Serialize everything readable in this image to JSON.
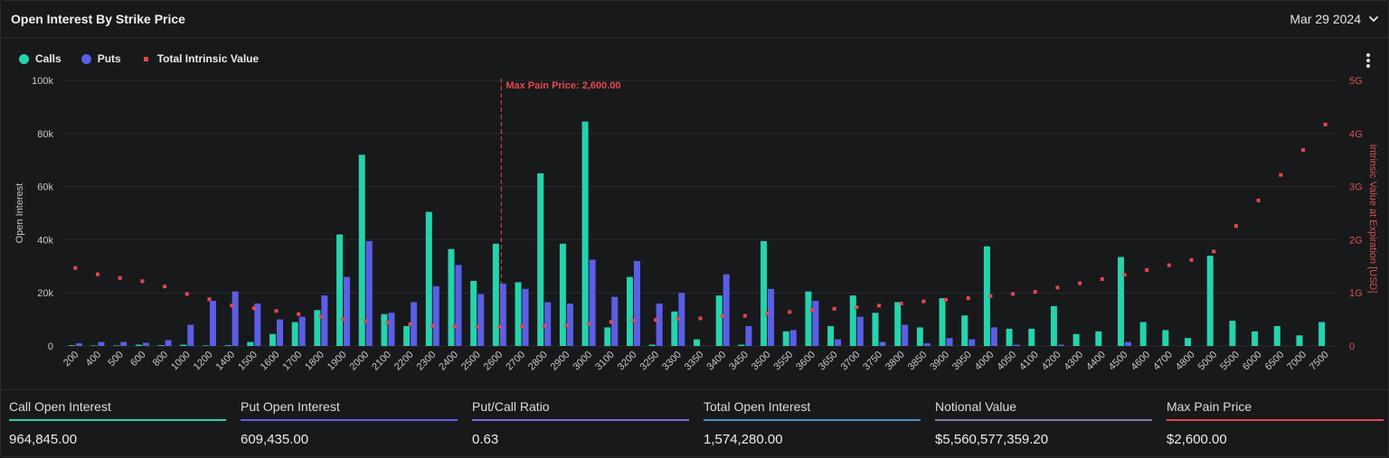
{
  "header": {
    "title": "Open Interest By Strike Price",
    "date": "Mar 29 2024"
  },
  "legend": {
    "calls": "Calls",
    "puts": "Puts",
    "intrinsic": "Total Intrinsic Value"
  },
  "colors": {
    "calls": "#25d3ad",
    "puts": "#5b5ee6",
    "intrinsic": "#e5484d",
    "grid": "#2a2b2f",
    "oi_line": "#4a8fc9"
  },
  "chart_data": {
    "type": "bar",
    "ylabel": "Open Interest",
    "y2label": "Intrinsic Value at Expiration [USD]",
    "ylim": [
      0,
      100000
    ],
    "y2lim": [
      0,
      5000000000
    ],
    "yticks": [
      "0",
      "20k",
      "40k",
      "60k",
      "80k",
      "100k"
    ],
    "y2ticks": [
      "0",
      "1G",
      "2G",
      "3G",
      "4G",
      "5G"
    ],
    "annotation": {
      "label": "Max Pain Price: 2,600.00",
      "category": "2600"
    },
    "categories": [
      "200",
      "400",
      "500",
      "600",
      "800",
      "1000",
      "1200",
      "1400",
      "1500",
      "1600",
      "1700",
      "1800",
      "1900",
      "2000",
      "2100",
      "2200",
      "2300",
      "2400",
      "2500",
      "2600",
      "2700",
      "2800",
      "2900",
      "3000",
      "3100",
      "3200",
      "3250",
      "3300",
      "3350",
      "3400",
      "3450",
      "3500",
      "3550",
      "3600",
      "3650",
      "3700",
      "3750",
      "3800",
      "3850",
      "3900",
      "3950",
      "4000",
      "4050",
      "4100",
      "4200",
      "4300",
      "4400",
      "4500",
      "4600",
      "4700",
      "4800",
      "5000",
      "5500",
      "6000",
      "6500",
      "7000",
      "7500"
    ],
    "series": [
      {
        "name": "Calls",
        "values": [
          300,
          200,
          200,
          500,
          300,
          500,
          200,
          300,
          1500,
          4500,
          9000,
          13500,
          42000,
          72000,
          12000,
          7500,
          50500,
          36500,
          24500,
          38500,
          24000,
          65000,
          38500,
          84500,
          7000,
          26000,
          500,
          13000,
          2500,
          19000,
          500,
          39500,
          5500,
          20500,
          7500,
          19000,
          12500,
          16500,
          7000,
          18000,
          11500,
          37500,
          6500,
          6500,
          15000,
          4500,
          5500,
          33500,
          9000,
          6000,
          3000,
          34000,
          9500,
          5500,
          7500,
          4000,
          9000
        ]
      },
      {
        "name": "Puts",
        "values": [
          1000,
          1500,
          1500,
          1200,
          2200,
          8000,
          17000,
          20500,
          16000,
          10000,
          11000,
          19000,
          26000,
          39500,
          12500,
          16500,
          22500,
          30500,
          19500,
          23500,
          21500,
          16500,
          16000,
          32500,
          18500,
          32000,
          16000,
          20000,
          100,
          27000,
          7500,
          21500,
          6000,
          17000,
          2500,
          11000,
          1500,
          8000,
          1000,
          3000,
          2500,
          7000,
          500,
          0,
          500,
          0,
          0,
          1500,
          0,
          0,
          0,
          0,
          0,
          0,
          0,
          0,
          0
        ]
      },
      {
        "name": "Total Intrinsic Value",
        "values": [
          1470000000,
          1350000000,
          1280000000,
          1220000000,
          1120000000,
          980000000,
          880000000,
          760000000,
          710000000,
          660000000,
          600000000,
          550000000,
          500000000,
          470000000,
          440000000,
          410000000,
          380000000,
          370000000,
          360000000,
          360000000,
          370000000,
          380000000,
          390000000,
          420000000,
          450000000,
          480000000,
          490000000,
          510000000,
          520000000,
          560000000,
          570000000,
          610000000,
          640000000,
          680000000,
          700000000,
          730000000,
          760000000,
          800000000,
          840000000,
          870000000,
          900000000,
          940000000,
          980000000,
          1020000000,
          1100000000,
          1180000000,
          1260000000,
          1340000000,
          1430000000,
          1520000000,
          1620000000,
          1780000000,
          2260000000,
          2740000000,
          3220000000,
          3690000000,
          4170000000
        ]
      }
    ]
  },
  "stats": [
    {
      "label": "Call Open Interest",
      "value": "964,845.00",
      "color": "#25d3ad"
    },
    {
      "label": "Put Open Interest",
      "value": "609,435.00",
      "color": "#5b5ee6"
    },
    {
      "label": "Put/Call Ratio",
      "value": "0.63",
      "color": "#7b6ee0"
    },
    {
      "label": "Total Open Interest",
      "value": "1,574,280.00",
      "color": "#4a8fc9"
    },
    {
      "label": "Notional Value",
      "value": "$5,560,577,359.20",
      "color": "#7a7ea6"
    },
    {
      "label": "Max Pain Price",
      "value": "$2,600.00",
      "color": "#e5484d"
    }
  ]
}
